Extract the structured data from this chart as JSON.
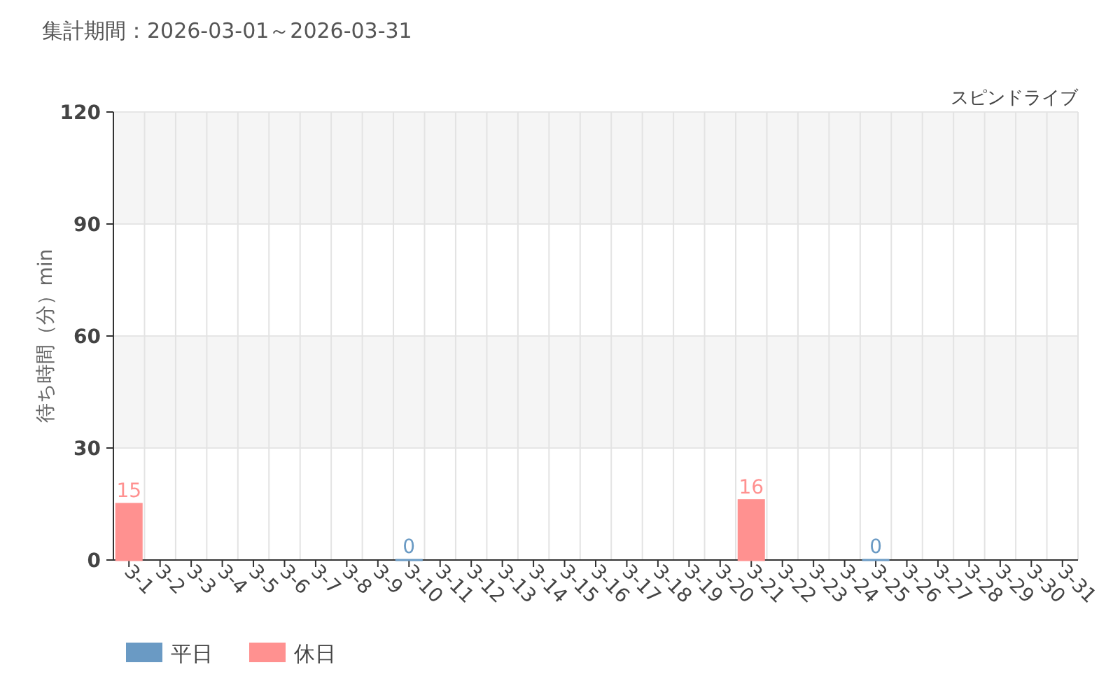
{
  "chart_data": {
    "type": "bar",
    "title": "集計期間：2026-03-01～2026-03-31",
    "subtitle": "スピンドライブ",
    "ylabel": "待ち時間（分）min",
    "categories": [
      "3-1",
      "3-2",
      "3-3",
      "3-4",
      "3-5",
      "3-6",
      "3-7",
      "3-8",
      "3-9",
      "3-10",
      "3-11",
      "3-12",
      "3-13",
      "3-14",
      "3-15",
      "3-16",
      "3-17",
      "3-18",
      "3-19",
      "3-20",
      "3-21",
      "3-22",
      "3-23",
      "3-24",
      "3-25",
      "3-26",
      "3-27",
      "3-28",
      "3-29",
      "3-30",
      "3-31"
    ],
    "series": [
      {
        "name": "平日",
        "color": "#6a9ac4",
        "values": [
          null,
          null,
          null,
          null,
          null,
          null,
          null,
          null,
          null,
          0,
          null,
          null,
          null,
          null,
          null,
          null,
          null,
          null,
          null,
          null,
          null,
          null,
          null,
          null,
          0,
          null,
          null,
          null,
          null,
          null,
          null
        ]
      },
      {
        "name": "休日",
        "color": "#ff9190",
        "values": [
          15,
          null,
          null,
          null,
          null,
          null,
          null,
          null,
          null,
          null,
          null,
          null,
          null,
          null,
          null,
          null,
          null,
          null,
          null,
          null,
          16,
          null,
          null,
          null,
          null,
          null,
          null,
          null,
          null,
          null,
          null
        ]
      }
    ],
    "ylim": [
      0,
      120
    ],
    "yticks": [
      0,
      30,
      60,
      90,
      120
    ],
    "grid": true,
    "legend": "bottom left",
    "data_labels": true
  }
}
